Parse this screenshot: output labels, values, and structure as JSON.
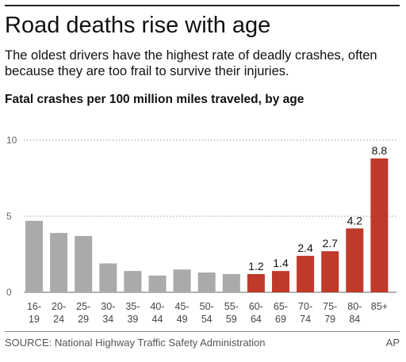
{
  "title": "Road deaths rise with age",
  "subtitle": "The oldest drivers have the highest rate of deadly crashes, often because they are too frail to survive their injuries.",
  "source": "SOURCE: National Highway Traffic Safety Administration",
  "credit": "AP",
  "colors": {
    "gray": "#aaaaaa",
    "red": "#c03a2b",
    "grid": "#999999",
    "axis": "#666666"
  },
  "chart_data": {
    "type": "bar",
    "title": "Fatal crashes per 100 million miles traveled, by age",
    "categories": [
      "16-19",
      "20-24",
      "25-29",
      "30-34",
      "35-39",
      "40-44",
      "45-49",
      "50-54",
      "55-59",
      "60-64",
      "65-69",
      "70-74",
      "75-79",
      "80-84",
      "85+"
    ],
    "category_lines": [
      [
        "16-",
        "19"
      ],
      [
        "20-",
        "24"
      ],
      [
        "25-",
        "29"
      ],
      [
        "30-",
        "34"
      ],
      [
        "35-",
        "39"
      ],
      [
        "40-",
        "44"
      ],
      [
        "45-",
        "49"
      ],
      [
        "50-",
        "54"
      ],
      [
        "55-",
        "59"
      ],
      [
        "60-",
        "64"
      ],
      [
        "65-",
        "69"
      ],
      [
        "70-",
        "74"
      ],
      [
        "75-",
        "79"
      ],
      [
        "80-",
        "84"
      ],
      [
        "85+",
        ""
      ]
    ],
    "values": [
      4.7,
      3.9,
      3.7,
      1.9,
      1.4,
      1.1,
      1.5,
      1.3,
      1.2,
      1.2,
      1.4,
      2.4,
      2.7,
      4.2,
      8.8
    ],
    "data_labels": [
      "",
      "",
      "",
      "",
      "",
      "",
      "",
      "",
      "",
      "1.2",
      "1.4",
      "2.4",
      "2.7",
      "4.2",
      "8.8"
    ],
    "highlight_from_index": 9,
    "yticks": [
      0,
      5,
      10
    ],
    "ylim": [
      0,
      10
    ],
    "grid": "dotted"
  }
}
